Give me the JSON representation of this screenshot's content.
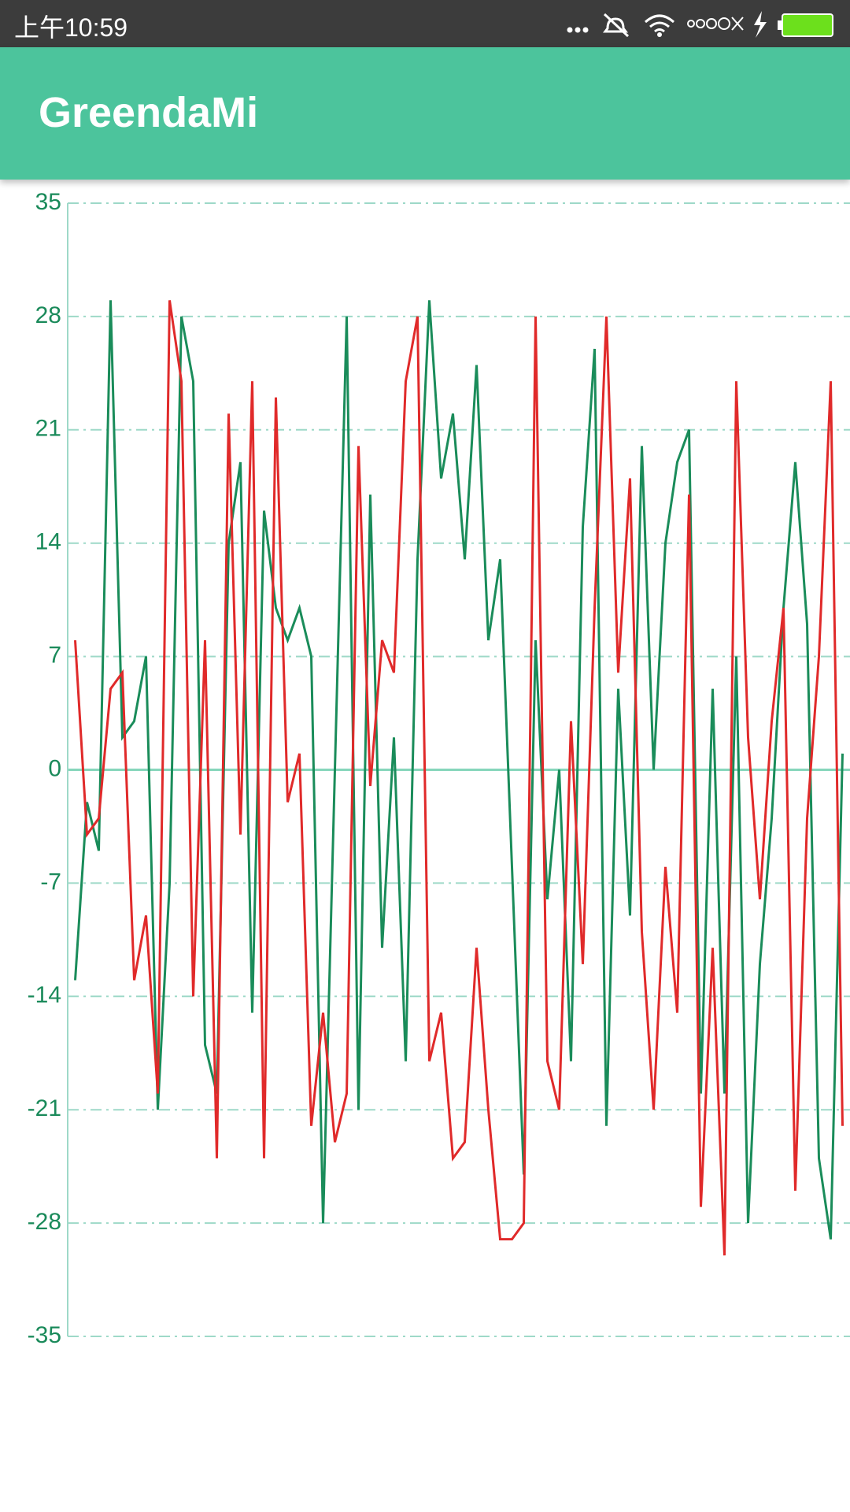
{
  "status_bar": {
    "time": "上午10:59"
  },
  "app_bar": {
    "title": "GreendaMi"
  },
  "chart_data": {
    "type": "line",
    "ylim": [
      -35,
      35
    ],
    "yticks": [
      -35,
      -28,
      -21,
      -14,
      -7,
      0,
      7,
      14,
      21,
      28,
      35
    ],
    "grid": true,
    "series": [
      {
        "name": null,
        "color": "#1a8c5a",
        "values": [
          -13,
          -2,
          -5,
          29,
          2,
          3,
          7,
          -21,
          -7,
          28,
          24,
          -17,
          -20,
          14,
          19,
          -15,
          16,
          10,
          8,
          10,
          7,
          -28,
          0,
          28,
          -21,
          17,
          -11,
          2,
          -18,
          13,
          29,
          18,
          22,
          13,
          25,
          8,
          13,
          -6,
          -25,
          8,
          -8,
          0,
          -18,
          15,
          26,
          -22,
          5,
          -9,
          20,
          0,
          14,
          19,
          21,
          -20,
          5,
          -20,
          7,
          -28,
          -12,
          -3,
          10,
          19,
          9,
          -24,
          -29,
          1
        ]
      },
      {
        "name": null,
        "color": "#e02a2a",
        "values": [
          8,
          -4,
          -3,
          5,
          6,
          -13,
          -9,
          -20,
          29,
          24,
          -14,
          8,
          -24,
          22,
          -4,
          24,
          -24,
          23,
          -2,
          1,
          -22,
          -15,
          -23,
          -20,
          20,
          -1,
          8,
          6,
          24,
          28,
          -18,
          -15,
          -24,
          -23,
          -11,
          -21,
          -29,
          -29,
          -28,
          28,
          -18,
          -21,
          3,
          -12,
          10,
          28,
          6,
          18,
          -10,
          -21,
          -6,
          -15,
          17,
          -27,
          -11,
          -30,
          24,
          2,
          -8,
          3,
          10,
          -26,
          -3,
          7,
          24,
          -22
        ]
      }
    ]
  }
}
